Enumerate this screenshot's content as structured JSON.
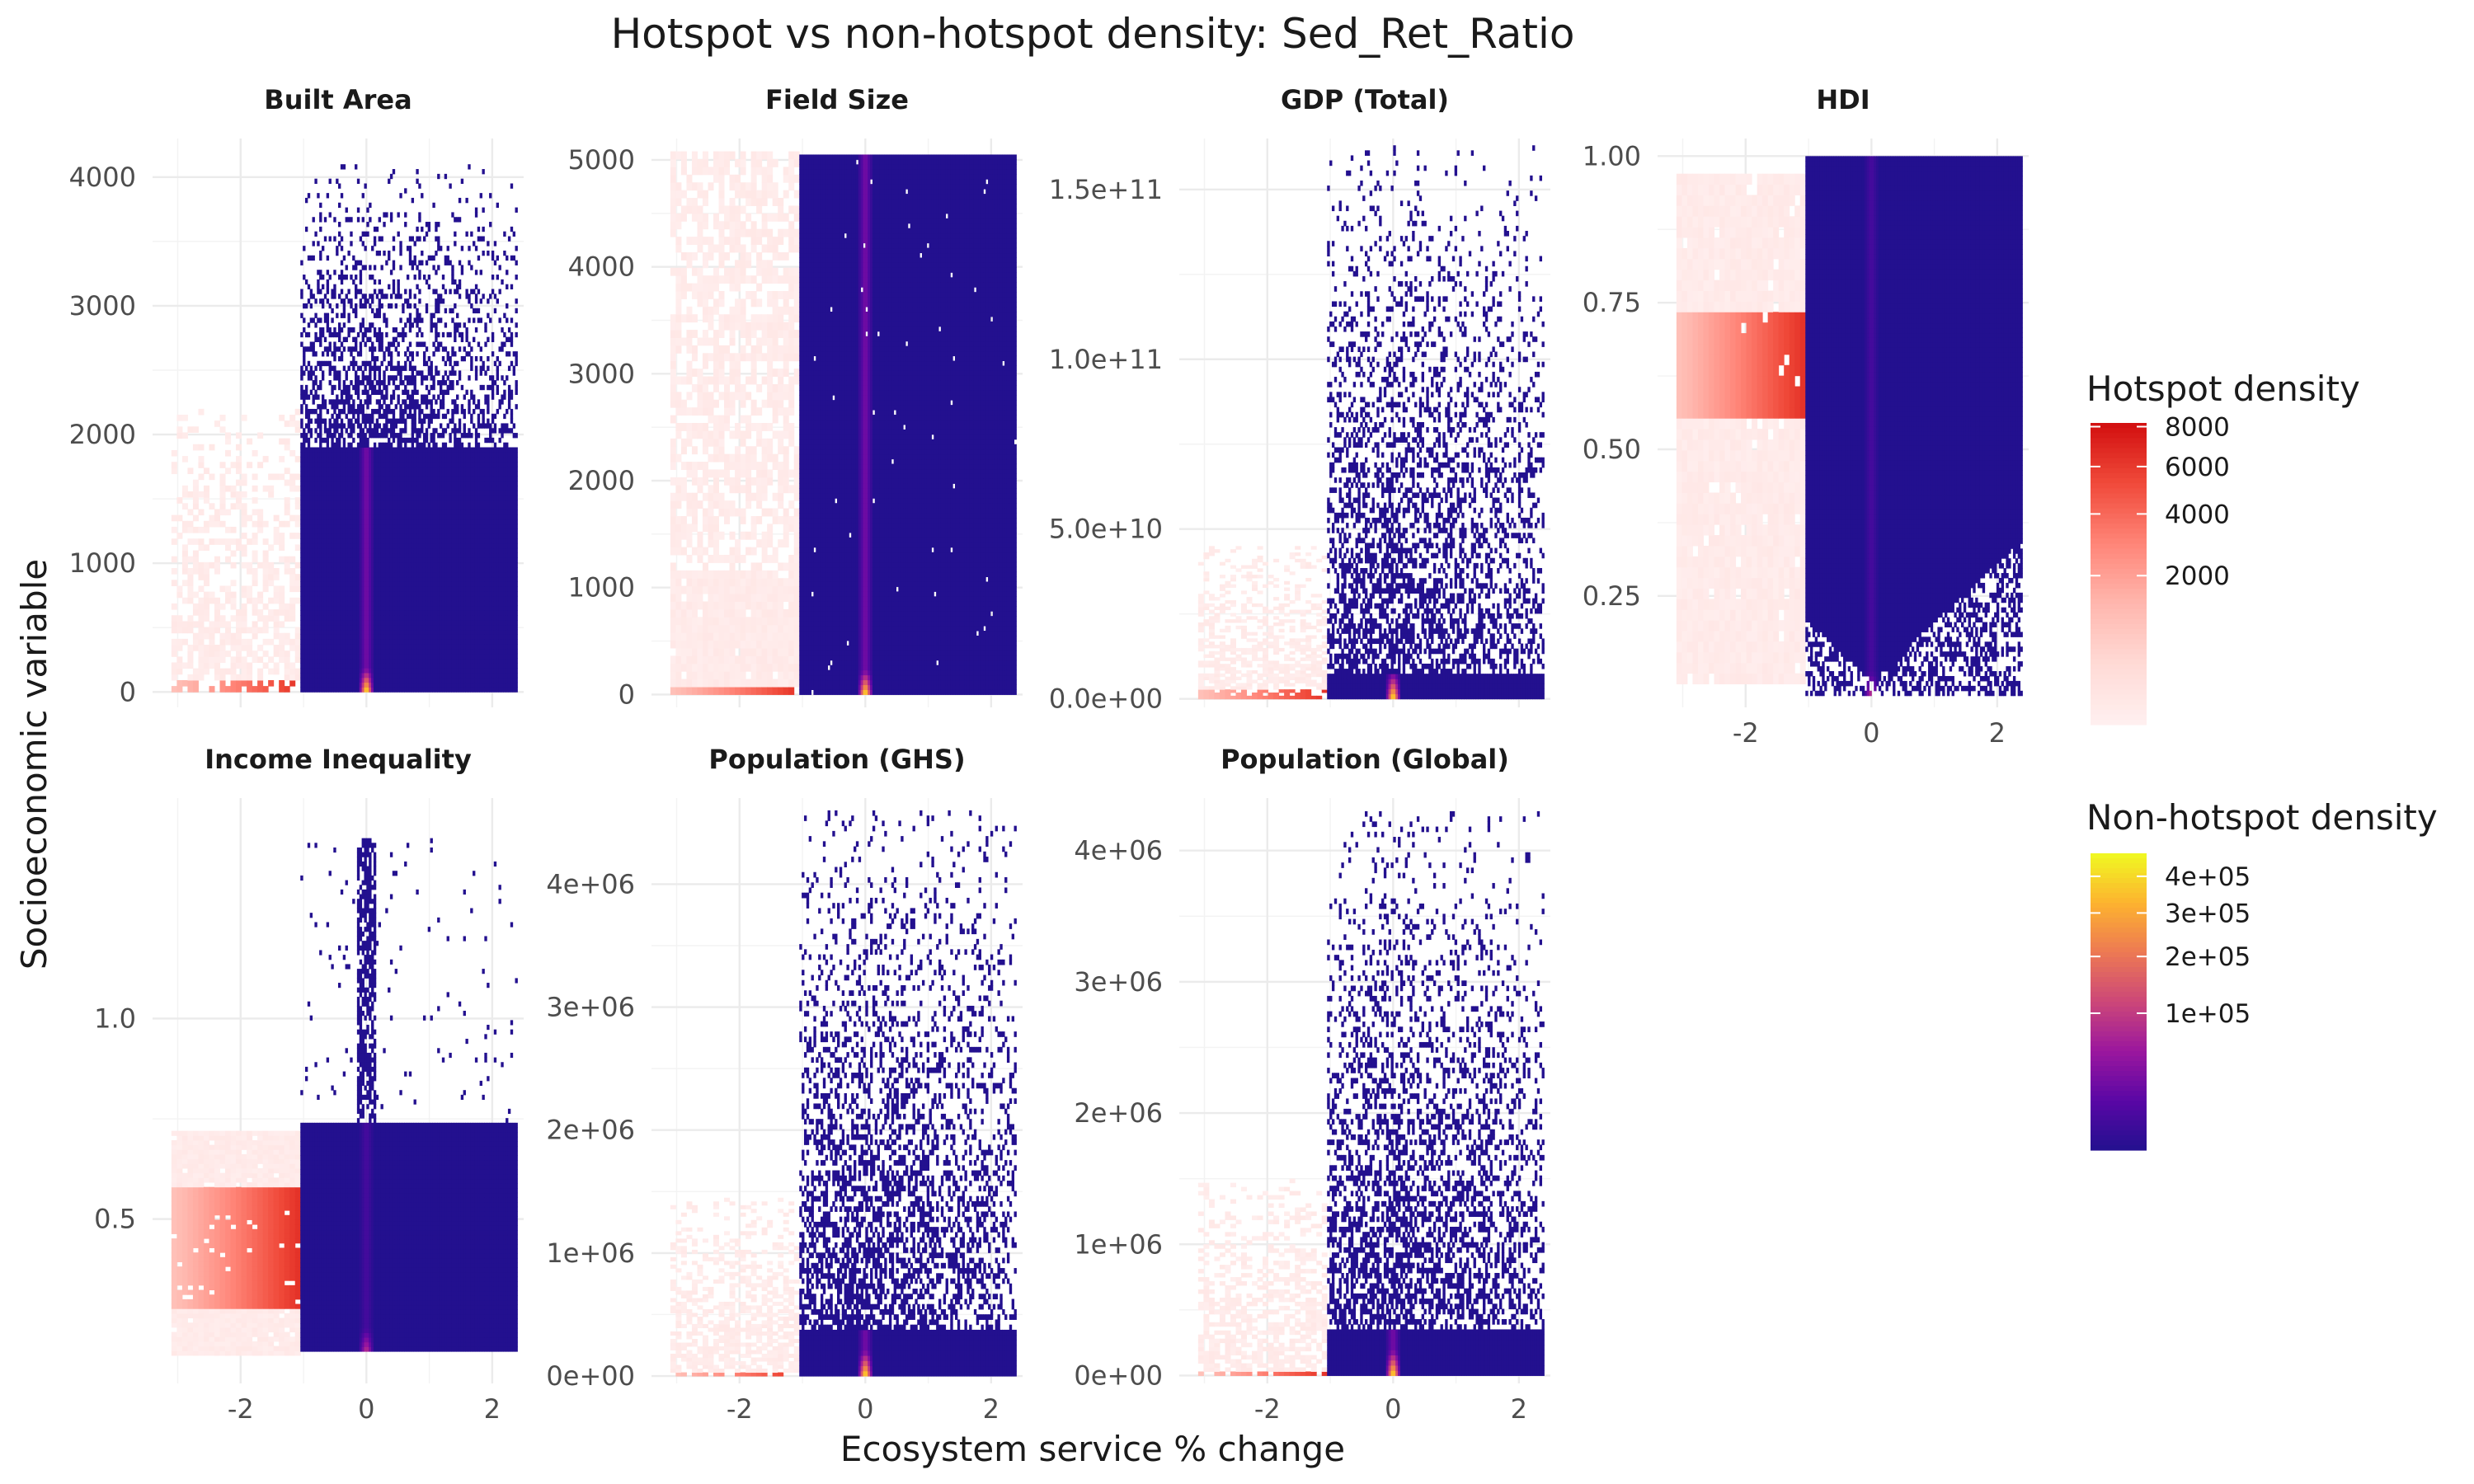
{
  "chart_data": {
    "type": "heatmap",
    "title": "Hotspot vs non-hotspot density: Sed_Ret_Ratio",
    "xlabel": "Ecosystem service % change",
    "ylabel": "Socioeconomic variable",
    "grid": true,
    "x_range": [
      -3.4,
      2.5
    ],
    "x_ticks": [
      -2,
      0,
      2
    ],
    "x_tick_labels": [
      "-2",
      "0",
      "2"
    ],
    "hotspot_x_range": [
      -3.1,
      -1.05
    ],
    "nonhotspot_x_range": [
      -1.05,
      2.4
    ],
    "panels": [
      {
        "name": "Built Area",
        "ylim": [
          -120,
          4300
        ],
        "y_ticks": [
          0,
          1000,
          2000,
          3000,
          4000
        ],
        "y_tick_labels": [
          "0",
          "1000",
          "2000",
          "3000",
          "4000"
        ],
        "hotspot_ymax": 2200,
        "nonhotspot_ymax": 4100,
        "dense_ymax": 1900,
        "hotspot_hot_band": [
          0,
          60
        ],
        "profile": "spiky"
      },
      {
        "name": "Field Size",
        "ylim": [
          -120,
          5200
        ],
        "y_ticks": [
          0,
          1000,
          2000,
          3000,
          4000,
          5000
        ],
        "y_tick_labels": [
          "0",
          "1000",
          "2000",
          "3000",
          "4000",
          "5000"
        ],
        "hotspot_ymax": 5080,
        "nonhotspot_ymax": 5050,
        "dense_ymax": 5050,
        "hotspot_hot_band": [
          0,
          60
        ],
        "profile": "field"
      },
      {
        "name": "GDP (Total)",
        "ylim": [
          -2500000000.0,
          165000000000.0
        ],
        "y_ticks": [
          0,
          50000000000.0,
          100000000000.0,
          150000000000.0
        ],
        "y_tick_labels": [
          "0.0e+00",
          "5.0e+10",
          "1.0e+11",
          "1.5e+11"
        ],
        "hotspot_ymax": 45000000000.0,
        "nonhotspot_ymax": 163000000000.0,
        "dense_ymax": 6000000000.0,
        "hotspot_hot_band": [
          0,
          2200000000.0
        ],
        "profile": "spiky"
      },
      {
        "name": "HDI",
        "ylim": [
          0.06,
          1.03
        ],
        "y_ticks": [
          0.25,
          0.5,
          0.75,
          1.0
        ],
        "y_tick_labels": [
          "0.25",
          "0.50",
          "0.75",
          "1.00"
        ],
        "hotspot_ymax": 0.97,
        "nonhotspot_ymax": 1.0,
        "dense_ymax": 1.0,
        "hotspot_hot_band": [
          0.55,
          0.72
        ],
        "profile": "hdi"
      },
      {
        "name": "Income Inequality",
        "ylim": [
          0.09,
          1.55
        ],
        "y_ticks": [
          0.5,
          1.0
        ],
        "y_tick_labels": [
          "0.5",
          "1.0"
        ],
        "hotspot_ymax": 0.72,
        "nonhotspot_ymax": 1.45,
        "dense_ymax": 0.73,
        "hotspot_hot_band": [
          0.27,
          0.57
        ],
        "profile": "income"
      },
      {
        "name": "Population (GHS)",
        "ylim": [
          -60000.0,
          4700000.0
        ],
        "y_ticks": [
          0,
          1000000.0,
          2000000.0,
          3000000.0,
          4000000.0
        ],
        "y_tick_labels": [
          "0e+00",
          "1e+06",
          "2e+06",
          "3e+06",
          "4e+06"
        ],
        "hotspot_ymax": 1450000.0,
        "nonhotspot_ymax": 4600000.0,
        "dense_ymax": 350000.0,
        "hotspot_hot_band": [
          0,
          25000.0
        ],
        "profile": "spiky"
      },
      {
        "name": "Population (Global)",
        "ylim": [
          -60000.0,
          4400000.0
        ],
        "y_ticks": [
          0,
          1000000.0,
          2000000.0,
          3000000.0,
          4000000.0
        ],
        "y_tick_labels": [
          "0e+00",
          "1e+06",
          "2e+06",
          "3e+06",
          "4e+06"
        ],
        "hotspot_ymax": 1500000.0,
        "nonhotspot_ymax": 4300000.0,
        "dense_ymax": 350000.0,
        "hotspot_hot_band": [
          0,
          25000.0
        ],
        "profile": "spiky"
      }
    ],
    "legends": [
      {
        "title": "Hotspot density",
        "scale": "sqrt",
        "range": [
          0,
          8200
        ],
        "breaks": [
          2000,
          4000,
          6000,
          8000
        ],
        "labels": [
          "2000",
          "4000",
          "6000",
          "8000"
        ],
        "colors": [
          "#fff0f0",
          "#ffdad6",
          "#ffb7ae",
          "#ff8578",
          "#f04a3a",
          "#d20f0f"
        ]
      },
      {
        "title": "Non-hotspot density",
        "scale": "sqrt",
        "range": [
          0,
          470000.0
        ],
        "breaks": [
          100000.0,
          200000.0,
          300000.0,
          400000.0
        ],
        "labels": [
          "1e+05",
          "2e+05",
          "3e+05",
          "4e+05"
        ],
        "colors": [
          "#23108f",
          "#5a07a5",
          "#9b179e",
          "#cc4778",
          "#ed7953",
          "#fdb32f",
          "#f0f921"
        ]
      }
    ]
  }
}
